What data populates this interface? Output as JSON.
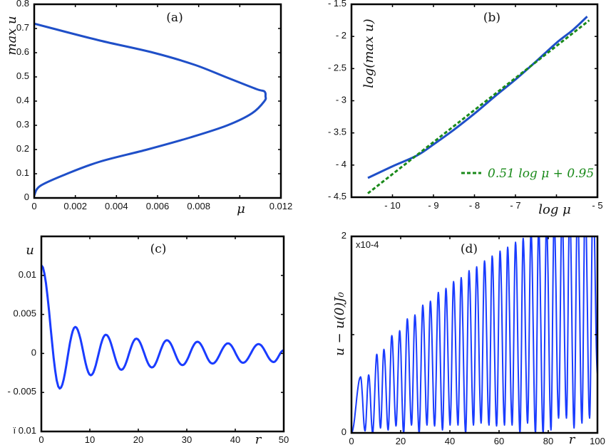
{
  "chart_data": [
    {
      "type": "line",
      "title": "(a)",
      "xlabel": "μ",
      "ylabel": "max u",
      "xlim": [
        0,
        0.012
      ],
      "ylim": [
        0,
        0.8
      ],
      "xticks": [
        0,
        0.002,
        0.004,
        0.006,
        0.008,
        0.01,
        0.012
      ],
      "xticklabels": [
        "0",
        "0.002",
        "0.004",
        "0.006",
        "0.008",
        "",
        "0.012"
      ],
      "yticks": [
        0,
        0.1,
        0.2,
        0.3,
        0.4,
        0.5,
        0.6,
        0.7,
        0.8
      ],
      "yticklabels": [
        "0",
        "0.1",
        "0.2",
        "0.3",
        "0.4",
        "0.5",
        "0.6",
        "0.7",
        "0.8"
      ],
      "color": "#1f4fc8",
      "series": [
        {
          "x": [
            0,
            0.0003,
            0.0016,
            0.0032,
            0.0055,
            0.0076,
            0.0094,
            0.0106,
            0.0112,
            0.01125,
            0.0112,
            0.0108,
            0.0093,
            0.0078,
            0.0058,
            0.0032,
            0.0009,
            0
          ],
          "y": [
            0.01,
            0.05,
            0.1,
            0.15,
            0.2,
            0.25,
            0.3,
            0.35,
            0.4,
            0.42,
            0.44,
            0.45,
            0.5,
            0.55,
            0.6,
            0.65,
            0.7,
            0.72
          ]
        }
      ]
    },
    {
      "type": "line",
      "title": "(b)",
      "xlabel": "log μ",
      "ylabel": "log(max u)",
      "xlim": [
        -11,
        -5
      ],
      "ylim": [
        -4.5,
        -1.5
      ],
      "xticks": [
        -10,
        -9,
        -8,
        -7,
        -6,
        -5
      ],
      "xticklabels": [
        "- 10",
        "- 9",
        "- 8",
        "- 7",
        "",
        "- 5"
      ],
      "yticks": [
        -4.5,
        -4,
        -3.5,
        -3,
        -2.5,
        -2,
        -1.5
      ],
      "yticklabels": [
        "- 4.5",
        "- 4",
        "- 3.5",
        "- 3",
        "- 2.5",
        "- 2",
        "- 1.5"
      ],
      "series": [
        {
          "color": "#1f4fc8",
          "style": "solid",
          "x": [
            -10.6,
            -10,
            -9.4,
            -9,
            -8.5,
            -8,
            -7.5,
            -7,
            -6.5,
            -6,
            -5.6,
            -5.25
          ],
          "y": [
            -4.2,
            -4.02,
            -3.85,
            -3.68,
            -3.45,
            -3.2,
            -2.93,
            -2.67,
            -2.39,
            -2.1,
            -1.9,
            -1.69
          ]
        },
        {
          "name": "0.51 log μ + 0.95",
          "color": "#1a8a1a",
          "style": "dashed",
          "x": [
            -10.6,
            -5.2
          ],
          "y": [
            -4.44,
            -1.75
          ]
        }
      ],
      "legend": {
        "label": "0.51 log μ + 0.95",
        "placement": "bottom-right"
      }
    },
    {
      "type": "line",
      "title": "(c)",
      "xlabel": "r",
      "ylabel": "u",
      "xlim": [
        0,
        50
      ],
      "ylim": [
        -0.01,
        0.015
      ],
      "xticks": [
        0,
        10,
        20,
        30,
        40,
        50
      ],
      "xticklabels": [
        "0",
        "10",
        "20",
        "30",
        "40",
        "50"
      ],
      "yticks": [
        -0.01,
        -0.005,
        0,
        0.005,
        0.01
      ],
      "yticklabels": [
        "ï 0.01",
        "- 0.005",
        "0",
        "0.005",
        "0.01"
      ],
      "color": "#1a3cff",
      "series": [
        {
          "x": [
            0,
            3.8,
            7.0,
            10.2,
            13.3,
            16.5,
            19.6,
            22.8,
            25.9,
            29.1,
            32.2,
            35.3,
            38.5,
            41.6,
            44.8,
            47.9,
            50
          ],
          "y": [
            0.0113,
            -0.0045,
            0.0034,
            -0.0028,
            0.0024,
            -0.0021,
            0.0019,
            -0.0018,
            0.0017,
            -0.0015,
            0.0015,
            -0.0013,
            0.0013,
            -0.0012,
            0.0012,
            -0.0011,
            0.0004
          ]
        }
      ]
    },
    {
      "type": "line",
      "title": "(d)",
      "xlabel": "r",
      "ylabel": "u − u(0)J₀",
      "ylabel_multiplier": "x10-4",
      "xlim": [
        0,
        100
      ],
      "ylim": [
        0,
        2
      ],
      "xticks": [
        0,
        20,
        40,
        60,
        80,
        100
      ],
      "xticklabels": [
        "0",
        "20",
        "40",
        "60",
        "80",
        "100"
      ],
      "yticks": [
        0,
        1,
        2
      ],
      "yticklabels": [
        "0",
        "",
        "2"
      ],
      "color": "#1a3cff",
      "series": [
        {
          "x": [
            0,
            3.7,
            5.5,
            7.0,
            8.6,
            10.3,
            11.8,
            13.2,
            14.9,
            16.4,
            18.1,
            19.6,
            21.2,
            22.7,
            24.4,
            25.8,
            27.5,
            29.0,
            30.7,
            32.1,
            33.8,
            35.3,
            37.0,
            38.4,
            40.1,
            41.5,
            43.3,
            44.6,
            46.4,
            47.8,
            49.6,
            50.9,
            52.7,
            54.1,
            55.9,
            57.2,
            59.0,
            60.4,
            62.2,
            63.5,
            65.3,
            66.7,
            68.5,
            69.8,
            71.6,
            73.0,
            74.8,
            76.1,
            77.9,
            79.3,
            81.1,
            82.4,
            84.2,
            85.6,
            87.4,
            88.7,
            90.5,
            91.9,
            93.7,
            95.0,
            96.8,
            98.2,
            100
          ],
          "y": [
            0,
            0.57,
            0.02,
            0.59,
            0,
            0.8,
            0.05,
            0.85,
            0.03,
            0.99,
            0.07,
            1.04,
            0,
            1.16,
            0.08,
            1.2,
            0,
            1.3,
            0.08,
            1.34,
            0.07,
            1.43,
            0.03,
            1.47,
            0.08,
            1.54,
            0.08,
            1.58,
            0,
            1.65,
            0.08,
            1.69,
            0.1,
            1.75,
            0.08,
            1.8,
            0.07,
            1.85,
            0.08,
            1.89,
            0.08,
            1.94,
            0,
            1.98,
            0.1,
            2.05,
            0,
            2.1,
            0,
            2.15,
            0.03,
            2.2,
            0.15,
            2.25,
            0.15,
            2.3,
            0.05,
            2.35,
            0.1,
            2.4,
            0.15,
            2.45,
            0.6
          ]
        }
      ]
    }
  ]
}
